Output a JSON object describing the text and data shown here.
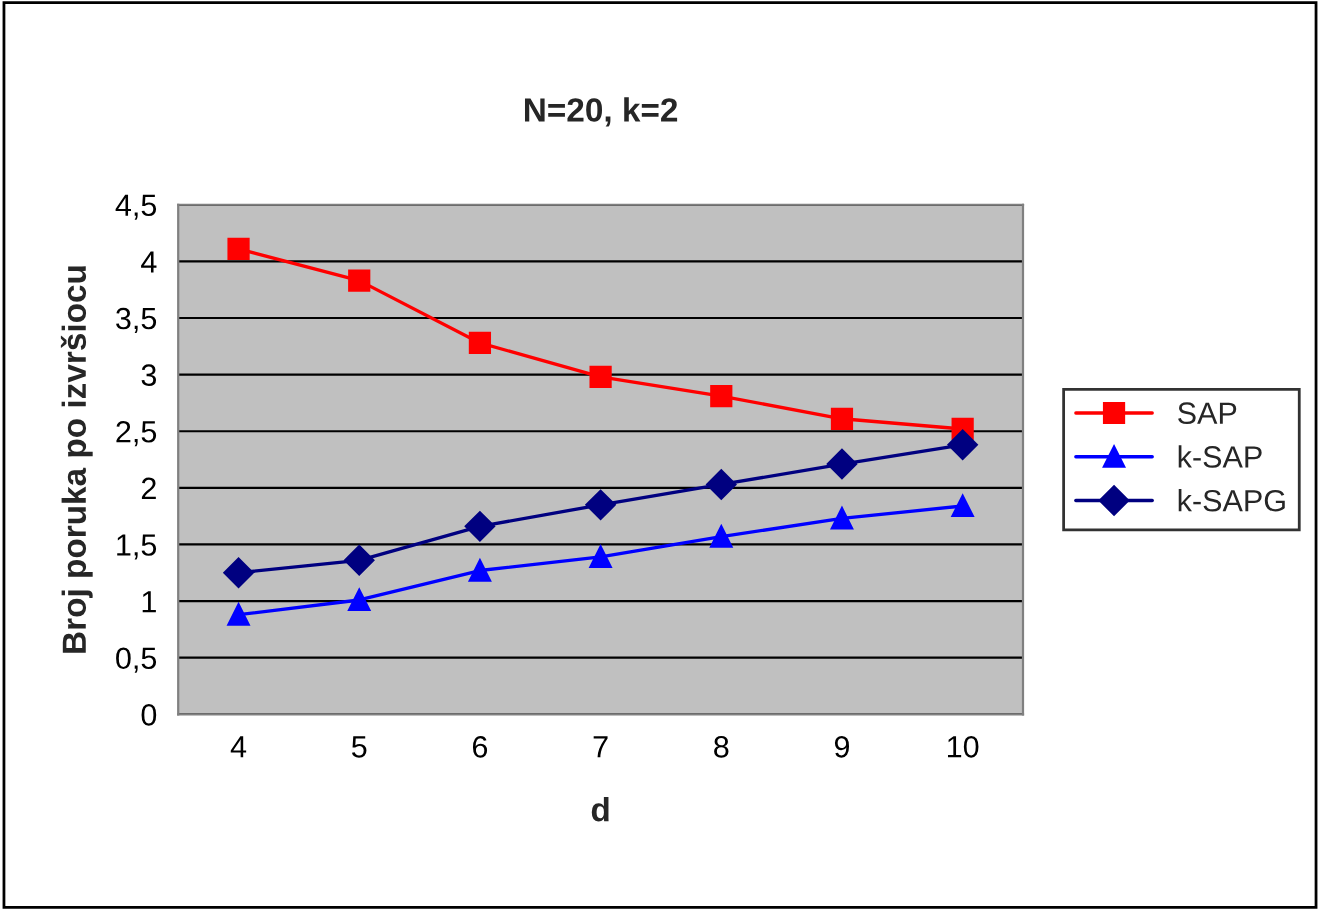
{
  "chart_data": {
    "type": "line",
    "title": "N=20, k=2",
    "xlabel": "d",
    "ylabel": "Broj poruka po izvršiocu",
    "categories": [
      "4",
      "5",
      "6",
      "7",
      "8",
      "9",
      "10"
    ],
    "series": [
      {
        "name": "SAP",
        "color": "#ff0000",
        "marker": "square",
        "values": [
          4.11,
          3.83,
          3.28,
          2.98,
          2.81,
          2.61,
          2.52
        ]
      },
      {
        "name": "k-SAP",
        "color": "#0000ff",
        "marker": "triangle",
        "values": [
          0.88,
          1.01,
          1.27,
          1.39,
          1.57,
          1.73,
          1.84
        ]
      },
      {
        "name": "k-SAPG",
        "color": "#000080",
        "marker": "diamond",
        "values": [
          1.25,
          1.36,
          1.66,
          1.85,
          2.03,
          2.21,
          2.38
        ]
      }
    ],
    "ylim": [
      0,
      4.5
    ],
    "yticks": [
      0,
      {
        "value": 0.5,
        "label": "0,5"
      },
      1,
      {
        "value": 1.5,
        "label": "1,5"
      },
      2,
      {
        "value": 2.5,
        "label": "2,5"
      },
      3,
      {
        "value": 3.5,
        "label": "3,5"
      },
      4,
      {
        "value": 4.5,
        "label": "4,5"
      }
    ],
    "grid": "y",
    "legend": "right"
  }
}
